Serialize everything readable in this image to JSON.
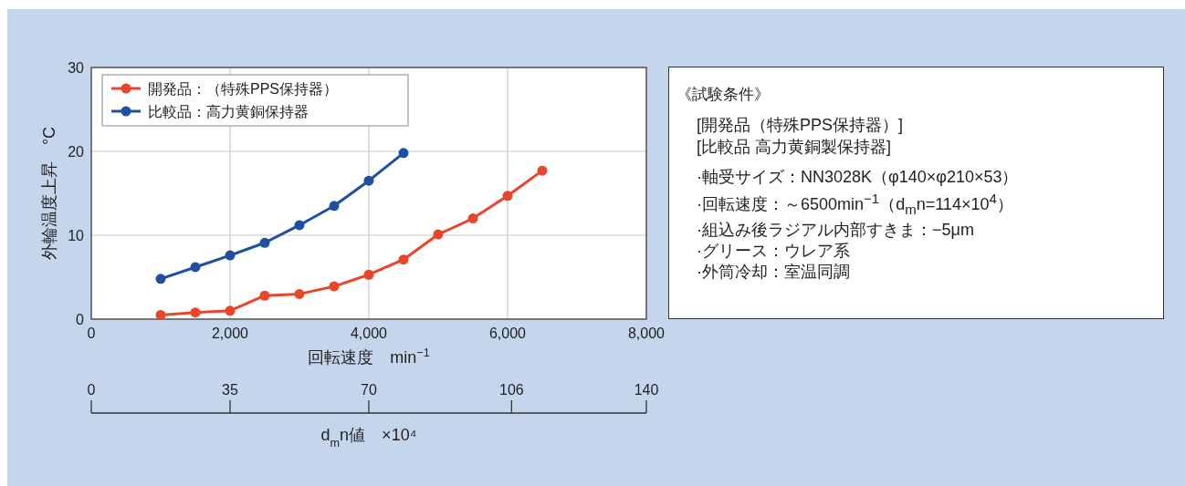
{
  "chart_data": [
    {
      "type": "line",
      "xlabel": "回転速度　min$^{−1}$",
      "ylabel": "外輪温度上昇　°C",
      "x2label": "d$_{m}$n値　×10⁴",
      "xlim": [
        0,
        8000
      ],
      "xticks": [
        0,
        {
          "value": 2000,
          "label": "2,000"
        },
        {
          "value": 4000,
          "label": "4,000"
        },
        {
          "value": 6000,
          "label": "6,000"
        },
        {
          "value": 8000,
          "label": "8,000"
        }
      ],
      "ylim": [
        0,
        30
      ],
      "yticks": [
        0,
        10,
        20,
        30
      ],
      "x2lim": [
        0,
        140
      ],
      "x2ticks": [
        0,
        35,
        70,
        106,
        140
      ],
      "grid": true,
      "legend": "top left",
      "marker": "circle",
      "line_style": "solid",
      "series": [
        {
          "name": "開発品：（特殊PPS保持器）",
          "color": "#e8452a",
          "x": [
            1000,
            1500,
            2000,
            2500,
            3000,
            3500,
            4000,
            4500,
            5000,
            5500,
            6000,
            6500
          ],
          "values": [
            0.5,
            0.8,
            1.0,
            2.8,
            3.0,
            3.9,
            5.3,
            7.1,
            10.1,
            12.0,
            14.7,
            17.7
          ]
        },
        {
          "name": "比較品：高力黄銅保持器",
          "color": "#1f4fa0",
          "x": [
            1000,
            1500,
            2000,
            2500,
            3000,
            3500,
            4000,
            4500
          ],
          "values": [
            4.8,
            6.2,
            7.6,
            9.1,
            11.2,
            13.5,
            16.5,
            19.8
          ]
        }
      ]
    },
    {
      "type": "other",
      "title": "《試験条件》",
      "annotations": [
        "[開発品（特殊PPS保持器）]",
        "[比較品 高力黄銅製保持器]",
        "·軸受サイズ：NN3028K（φ140×φ210×53）",
        "·回転速度：～6500min$^{−1}$（d$_{m}$n=114×10$^{4}$）",
        "·組込み後ラジアル内部すきま：−5μm",
        "·グリース：ウレア系",
        "·外筒冷却：室温同調"
      ]
    }
  ]
}
